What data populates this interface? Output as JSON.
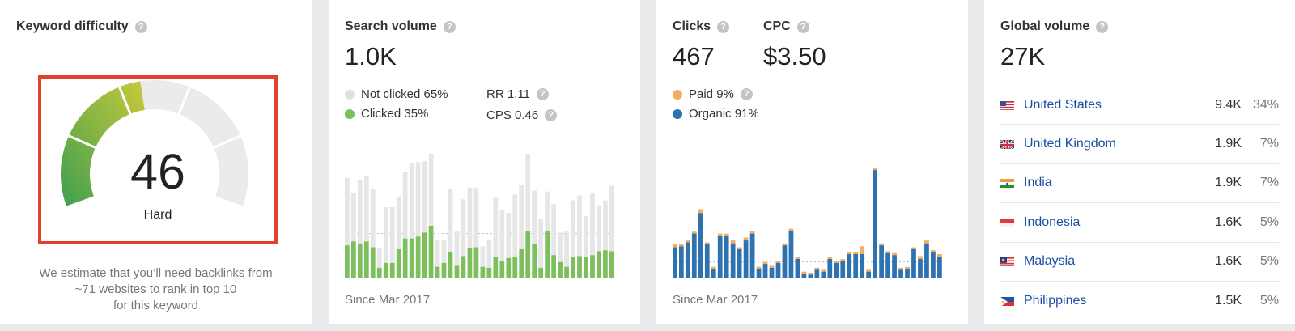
{
  "keyword_difficulty": {
    "title": "Keyword difficulty",
    "score": "46",
    "level": "Hard",
    "note_lines": [
      "We estimate that you’ll need backlinks from",
      "~71 websites to rank in top 10",
      "for this keyword"
    ],
    "colors": {
      "box_border": "#e3412f",
      "filled_start": "#3f9f4f",
      "filled_end": "#c9c93a",
      "empty": "#ebebed"
    }
  },
  "search_volume": {
    "title": "Search volume",
    "value": "1.0K",
    "legend": {
      "not_clicked": "Not clicked 65%",
      "clicked": "Clicked 35%"
    },
    "rr": "RR 1.11",
    "cps": "CPS 0.46",
    "since": "Since Mar 2017",
    "colors": {
      "clicked": "#7dbf5d",
      "not_clicked": "#e6e6e6"
    }
  },
  "clicks": {
    "title": "Clicks",
    "value": "467",
    "cpc_title": "CPC",
    "cpc_value": "$3.50",
    "legend": {
      "paid": "Paid 9%",
      "organic": "Organic 91%"
    },
    "since": "Since Mar 2017",
    "colors": {
      "paid": "#f2ad62",
      "organic": "#2f72b0"
    }
  },
  "global_volume": {
    "title": "Global volume",
    "value": "27K",
    "countries": [
      {
        "name": "United States",
        "volume": "9.4K",
        "pct": "34%",
        "flag": "us-flag-icon"
      },
      {
        "name": "United Kingdom",
        "volume": "1.9K",
        "pct": "7%",
        "flag": "uk-flag-icon"
      },
      {
        "name": "India",
        "volume": "1.9K",
        "pct": "7%",
        "flag": "india-flag-icon"
      },
      {
        "name": "Indonesia",
        "volume": "1.6K",
        "pct": "5%",
        "flag": "indonesia-flag-icon"
      },
      {
        "name": "Malaysia",
        "volume": "1.6K",
        "pct": "5%",
        "flag": "malaysia-flag-icon"
      },
      {
        "name": "Philippines",
        "volume": "1.5K",
        "pct": "5%",
        "flag": "philippines-flag-icon"
      }
    ]
  },
  "chart_data": [
    {
      "type": "bar",
      "chart": "search-volume-history",
      "series": [
        {
          "name": "Clicked",
          "values": [
            33,
            37,
            34,
            37,
            31,
            10,
            15,
            15,
            29,
            40,
            40,
            42,
            46,
            53,
            11,
            15,
            26,
            12,
            22,
            30,
            31,
            11,
            10,
            21,
            17,
            20,
            21,
            29,
            48,
            34,
            10,
            48,
            23,
            16,
            11,
            21,
            22,
            21,
            23,
            27,
            28,
            27
          ]
        },
        {
          "name": "Not clicked",
          "values": [
            69,
            49,
            66,
            67,
            60,
            20,
            57,
            57,
            54,
            68,
            77,
            76,
            73,
            92,
            27,
            23,
            65,
            36,
            58,
            62,
            61,
            21,
            29,
            61,
            52,
            46,
            64,
            66,
            117,
            55,
            50,
            40,
            52,
            30,
            36,
            58,
            62,
            42,
            63,
            47,
            51,
            67
          ]
        }
      ],
      "reference_line": 45
    },
    {
      "type": "bar",
      "chart": "clicks-history",
      "series": [
        {
          "name": "Organic",
          "values": [
            31,
            32,
            36,
            45,
            66,
            34,
            9,
            43,
            43,
            35,
            29,
            38,
            45,
            9,
            14,
            10,
            15,
            33,
            48,
            19,
            4,
            3,
            8,
            6,
            19,
            15,
            17,
            24,
            24,
            24,
            6,
            110,
            33,
            25,
            23,
            8,
            9,
            29,
            19,
            35,
            26,
            21
          ]
        },
        {
          "name": "Paid",
          "values": [
            3,
            2,
            2,
            2,
            4,
            2,
            2,
            2,
            2,
            3,
            2,
            3,
            3,
            2,
            2,
            2,
            2,
            2,
            2,
            2,
            2,
            2,
            2,
            2,
            2,
            2,
            2,
            2,
            2,
            8,
            2,
            2,
            2,
            2,
            2,
            2,
            2,
            2,
            3,
            3,
            2,
            3
          ]
        }
      ],
      "reference_line": 16
    }
  ]
}
